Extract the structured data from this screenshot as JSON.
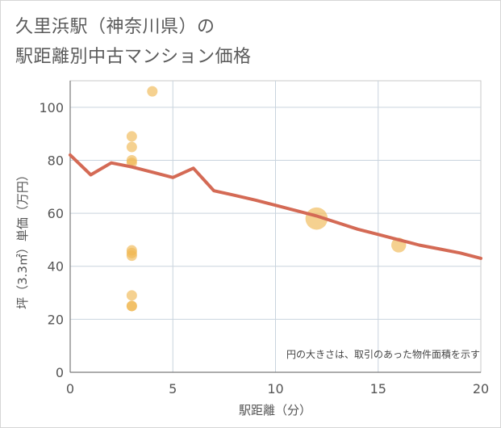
{
  "title": {
    "line1": "久里浜駅（神奈川県）の",
    "line2": "駅距離別中古マンション価格"
  },
  "chart_data": {
    "type": "scatter",
    "title": "久里浜駅（神奈川県）の駅距離別中古マンション価格",
    "xlabel": "駅距離（分）",
    "ylabel": "坪（3.3㎡）単価（万円）",
    "xlim": [
      0,
      20
    ],
    "ylim": [
      0,
      110
    ],
    "x_ticks": [
      0,
      5,
      10,
      15,
      20
    ],
    "y_ticks": [
      0,
      20,
      40,
      60,
      80,
      100
    ],
    "grid": true,
    "note": "円の大きさは、取引のあった物件面積を示す",
    "bubble_color": "#f0b955",
    "line_color": "#d46a55",
    "points": [
      {
        "x": 3,
        "y": 89,
        "size": 1
      },
      {
        "x": 3,
        "y": 85,
        "size": 1
      },
      {
        "x": 3,
        "y": 80,
        "size": 1
      },
      {
        "x": 3,
        "y": 79,
        "size": 1
      },
      {
        "x": 3,
        "y": 46,
        "size": 1
      },
      {
        "x": 3,
        "y": 45,
        "size": 1
      },
      {
        "x": 3,
        "y": 44,
        "size": 1
      },
      {
        "x": 3,
        "y": 29,
        "size": 1
      },
      {
        "x": 3,
        "y": 25,
        "size": 1
      },
      {
        "x": 3,
        "y": 25,
        "size": 1
      },
      {
        "x": 4,
        "y": 106,
        "size": 1
      },
      {
        "x": 12,
        "y": 58,
        "size": 4.5
      },
      {
        "x": 16,
        "y": 48,
        "size": 2
      }
    ],
    "trend_line": {
      "x": [
        0,
        1,
        2,
        3,
        4,
        5,
        6,
        7,
        8,
        9,
        10,
        11,
        12,
        13,
        14,
        15,
        16,
        17,
        18,
        19,
        20
      ],
      "y": [
        82,
        74.5,
        79,
        77.5,
        75.5,
        73.5,
        77,
        68.5,
        66.8,
        65,
        63,
        61,
        59,
        56.5,
        54,
        52,
        50,
        48,
        46.5,
        45,
        43
      ]
    }
  }
}
